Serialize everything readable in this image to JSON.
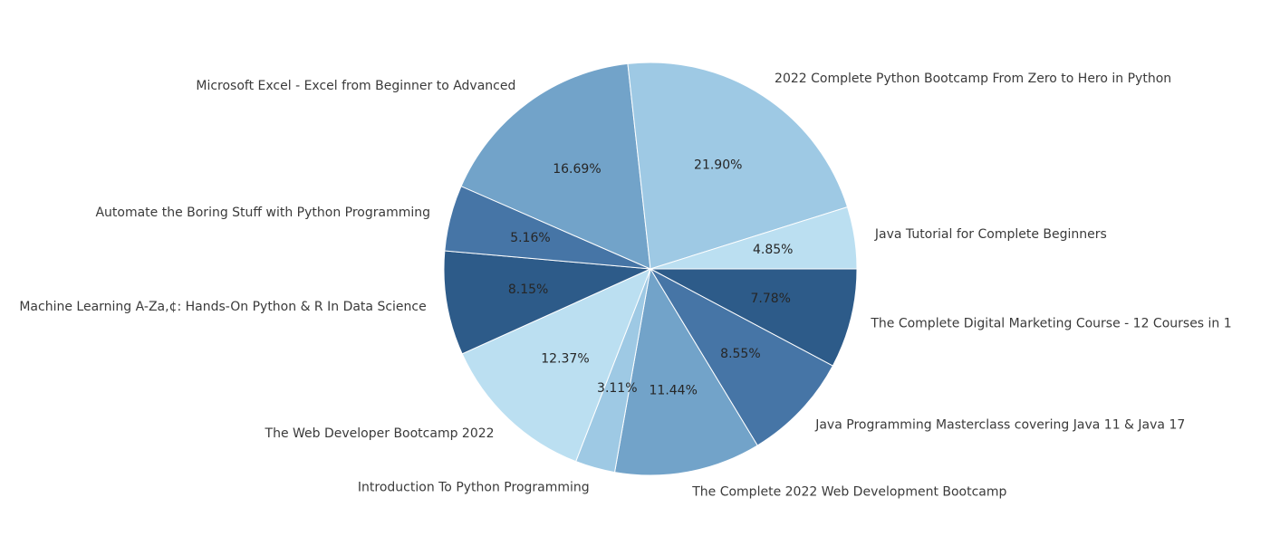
{
  "chart_data": {
    "type": "pie",
    "title": "",
    "start_angle_deg": 0,
    "direction": "clockwise",
    "slices": [
      {
        "label": "The Complete Digital Marketing Course - 12 Courses in 1",
        "value": 7.78,
        "pct_text": "7.78%",
        "color": "#2d5b89"
      },
      {
        "label": "Java Programming Masterclass covering Java 11 & Java 17",
        "value": 8.55,
        "pct_text": "8.55%",
        "color": "#4675a6"
      },
      {
        "label": "The Complete 2022 Web Development Bootcamp",
        "value": 11.44,
        "pct_text": "11.44%",
        "color": "#72a3c9"
      },
      {
        "label": "Introduction To Python Programming",
        "value": 3.11,
        "pct_text": "3.11%",
        "color": "#9ec9e4"
      },
      {
        "label": "The Web Developer Bootcamp 2022",
        "value": 12.37,
        "pct_text": "12.37%",
        "color": "#bbdff1"
      },
      {
        "label": "Machine Learning A-Zа,¢: Hands-On Python & R In Data Science",
        "value": 8.15,
        "pct_text": "8.15%",
        "color": "#2d5b89"
      },
      {
        "label": "Automate the Boring Stuff with Python Programming",
        "value": 5.16,
        "pct_text": "5.16%",
        "color": "#4675a6"
      },
      {
        "label": "Microsoft Excel - Excel from Beginner to Advanced",
        "value": 16.69,
        "pct_text": "16.69%",
        "color": "#72a3c9"
      },
      {
        "label": "2022 Complete Python Bootcamp From Zero to Hero in Python",
        "value": 21.9,
        "pct_text": "21.90%",
        "color": "#9ec9e4"
      },
      {
        "label": "Java Tutorial for Complete Beginners",
        "value": 4.85,
        "pct_text": "4.85%",
        "color": "#bbdff1"
      }
    ]
  }
}
